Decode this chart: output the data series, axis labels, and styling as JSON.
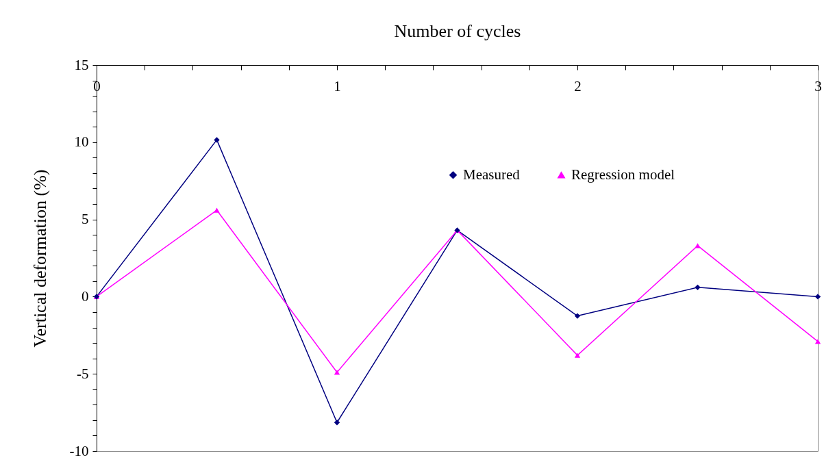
{
  "chart_data": {
    "type": "line",
    "xlabel": "Number of cycles",
    "ylabel": "Vertical deformation (%)",
    "x": [
      0,
      0.5,
      1,
      1.5,
      2,
      2.5,
      3
    ],
    "series": [
      {
        "name": "Measured",
        "color": "#000080",
        "marker": "diamond",
        "values": [
          0,
          10.15,
          -8.15,
          4.3,
          -1.25,
          0.6,
          0
        ]
      },
      {
        "name": "Regression model",
        "color": "#ff00ff",
        "marker": "triangle",
        "values": [
          0,
          5.6,
          -4.9,
          4.3,
          -3.8,
          3.3,
          -2.9
        ]
      }
    ],
    "xlim": [
      0,
      3
    ],
    "xticks": [
      0,
      {
        "value": 0.2,
        "label": null
      },
      {
        "value": 0.4,
        "label": null
      },
      {
        "value": 0.6,
        "label": null
      },
      {
        "value": 0.8,
        "label": null
      },
      1,
      {
        "value": 1.2,
        "label": null
      },
      {
        "value": 1.4,
        "label": null
      },
      {
        "value": 1.6,
        "label": null
      },
      {
        "value": 1.8,
        "label": null
      },
      2,
      {
        "value": 2.2,
        "label": null
      },
      {
        "value": 2.4,
        "label": null
      },
      {
        "value": 2.6,
        "label": null
      },
      {
        "value": 2.8,
        "label": null
      },
      3
    ],
    "ylim": [
      -10,
      15
    ],
    "yticks": [
      -10,
      {
        "value": -9,
        "label": null
      },
      {
        "value": -8,
        "label": null
      },
      {
        "value": -7,
        "label": null
      },
      {
        "value": -6,
        "label": null
      },
      -5,
      {
        "value": -4,
        "label": null
      },
      {
        "value": -3,
        "label": null
      },
      {
        "value": -2,
        "label": null
      },
      {
        "value": -1,
        "label": null
      },
      0,
      {
        "value": 1,
        "label": null
      },
      {
        "value": 2,
        "label": null
      },
      {
        "value": 3,
        "label": null
      },
      {
        "value": 4,
        "label": null
      },
      5,
      {
        "value": 6,
        "label": null
      },
      {
        "value": 7,
        "label": null
      },
      {
        "value": 8,
        "label": null
      },
      {
        "value": 9,
        "label": null
      },
      10,
      {
        "value": 11,
        "label": null
      },
      {
        "value": 12,
        "label": null
      },
      {
        "value": 13,
        "label": null
      },
      {
        "value": 14,
        "label": null
      },
      15
    ],
    "grid": false,
    "legend": "top right",
    "line_style": "solid"
  }
}
